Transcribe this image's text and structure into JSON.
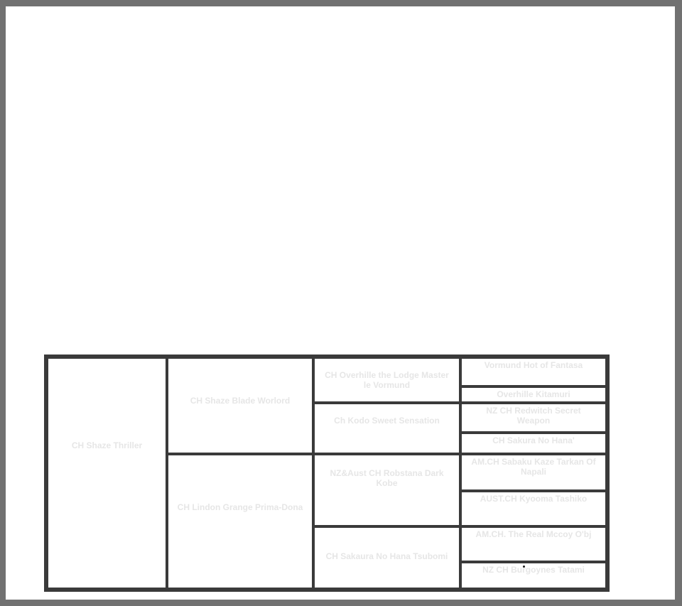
{
  "window": {
    "frame_color": "#717171",
    "page_background": "#ffffff"
  },
  "pedigree": {
    "border_color": "#3a3a3a",
    "text_color": "#e6e6e6",
    "columns": [
      {
        "role": "dog",
        "cells": [
          {
            "name": "CH Shaze Thriller"
          }
        ]
      },
      {
        "role": "parents",
        "cells": [
          {
            "name": "CH Shaze Blade Worlord"
          },
          {
            "name": "CH Lindon Grange Prima-Dona"
          }
        ]
      },
      {
        "role": "grandparents",
        "cells": [
          {
            "name": "CH Overhille the Lodge Master\nle Vormund"
          },
          {
            "name": "Ch Kodo Sweet Sensation"
          },
          {
            "name": "NZ&Aust CH Robstana Dark\nKobe"
          },
          {
            "name": "CH Sakaura No Hana Tsubomi"
          }
        ]
      },
      {
        "role": "great_grandparents",
        "cells": [
          {
            "name": "Vormund Hot of Fantasa"
          },
          {
            "name": "Overhille Kitamuri"
          },
          {
            "name": "NZ CH Redwitch Secret\nWeapon"
          },
          {
            "name": "CH Sakura No Hana'"
          },
          {
            "name": "AM.CH Sabaku Kaze Tarkan Of\nNapali"
          },
          {
            "name": "AUST.CH Kyooma Tashiko"
          },
          {
            "name": "AM.CH. The Real Mccoy O'bj"
          },
          {
            "name": "NZ CH Burgoynes Tatami"
          }
        ]
      }
    ]
  }
}
